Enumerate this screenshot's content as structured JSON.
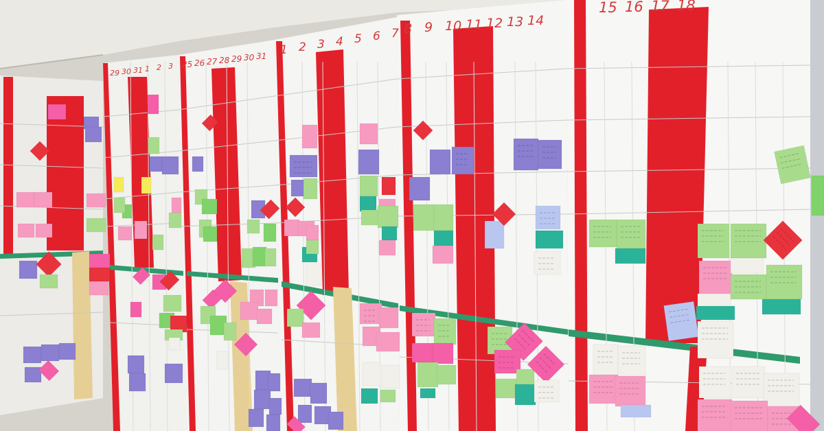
{
  "scene": {
    "description_title": "",
    "colors": {
      "ceiling": "#ebe9e4",
      "wall": "#d6d3cc",
      "board": "#f4f4f2",
      "board_shade": "#e4e4e1",
      "red_tape": "#e2202a",
      "green_tape": "#2f9a6c",
      "masking_tape": "#e6cf95",
      "note_pink": "#f79ac0",
      "note_hotpink": "#f45fa7",
      "note_purple": "#8a7fd0",
      "note_green": "#a8dc8c",
      "note_lime": "#7fd36a",
      "note_teal": "#2bb39a",
      "note_yellow": "#f4ea5a",
      "note_red": "#e8323c",
      "note_white": "#f2f0ea",
      "note_blue": "#b9c7f0"
    }
  },
  "headers": {
    "board2": [
      "29",
      "30",
      "31",
      "1",
      "2",
      "3"
    ],
    "board3": [
      "25",
      "26",
      "27",
      "28",
      "29",
      "30",
      "31"
    ],
    "board4": [
      "1",
      "2",
      "3",
      "4",
      "5",
      "6",
      "7"
    ],
    "board5": [
      "8",
      "9",
      "10",
      "11",
      "12",
      "13",
      "14"
    ],
    "board6": [
      "15",
      "16",
      "17",
      "18"
    ]
  }
}
